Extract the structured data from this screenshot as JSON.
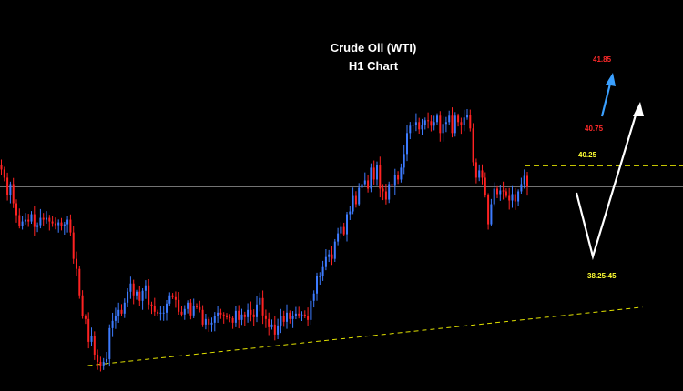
{
  "chart_data": {
    "type": "candlestick",
    "title_line1": "Crude Oil (WTI)",
    "title_line2": "H1 Chart",
    "colors": {
      "background": "#000000",
      "bull": "#3d7bff",
      "bear": "#ff2222",
      "trendline": "#e0e000",
      "resistance": "#e0e000",
      "current_price_line": "#9a9a9a",
      "forecast_path": "#ffffff",
      "forecast_arrow": "#3aa0ff",
      "target_label": "#ff2a2a",
      "level_label": "#ffff33"
    },
    "price_range": [
      37.9,
      41.95
    ],
    "candles_close": [
      40.21,
      40.12,
      39.93,
      40.05,
      39.84,
      39.71,
      39.59,
      39.64,
      39.66,
      39.64,
      39.72,
      39.58,
      39.6,
      39.68,
      39.66,
      39.68,
      39.64,
      39.62,
      39.6,
      39.63,
      39.59,
      39.61,
      39.66,
      39.52,
      39.23,
      39.12,
      38.83,
      38.6,
      38.57,
      38.32,
      38.38,
      38.18,
      38.1,
      38.05,
      38.1,
      38.13,
      38.47,
      38.55,
      38.6,
      38.67,
      38.63,
      38.75,
      38.87,
      38.96,
      38.83,
      38.87,
      38.77,
      38.88,
      38.94,
      38.73,
      38.71,
      38.65,
      38.63,
      38.64,
      38.64,
      38.74,
      38.83,
      38.81,
      38.78,
      38.65,
      38.62,
      38.68,
      38.75,
      38.61,
      38.71,
      38.7,
      38.67,
      38.51,
      38.57,
      38.51,
      38.53,
      38.6,
      38.64,
      38.62,
      38.61,
      38.59,
      38.58,
      38.53,
      38.66,
      38.56,
      38.62,
      38.59,
      38.67,
      38.62,
      38.59,
      38.73,
      38.8,
      38.61,
      38.57,
      38.48,
      38.51,
      38.4,
      38.5,
      38.6,
      38.54,
      38.64,
      38.57,
      38.6,
      38.63,
      38.61,
      38.62,
      38.6,
      38.56,
      38.77,
      38.85,
      39.04,
      39.04,
      39.14,
      39.25,
      39.28,
      39.23,
      39.42,
      39.51,
      39.58,
      39.5,
      39.72,
      39.75,
      39.92,
      39.83,
      40.01,
      40.05,
      40.09,
      40.0,
      40.23,
      40.1,
      40.26,
      40.0,
      39.97,
      39.88,
      40.05,
      40.03,
      40.15,
      40.1,
      40.23,
      40.38,
      40.61,
      40.69,
      40.7,
      40.73,
      40.65,
      40.7,
      40.75,
      40.74,
      40.69,
      40.73,
      40.8,
      40.61,
      40.71,
      40.73,
      40.8,
      40.61,
      40.8,
      40.73,
      40.7,
      40.78,
      40.81,
      40.66,
      40.29,
      40.12,
      40.2,
      40.12,
      39.93,
      39.61,
      39.83,
      40.0,
      39.94,
      39.98,
      39.97,
      39.92,
      39.87,
      39.94,
      39.86,
      39.97,
      40.05,
      40.14,
      40.02
    ],
    "current_price": 40.02,
    "levels": [
      {
        "label": "40.25",
        "price": 40.25,
        "style": "dashed"
      },
      {
        "label": "38.25-45",
        "price": 38.35,
        "style": "trendline-target"
      }
    ],
    "trendline": {
      "from": {
        "bar": 0,
        "price": 38.06
      },
      "to": {
        "bar": 233,
        "price": 38.7
      }
    },
    "forecast_path": [
      {
        "bar": 181,
        "price": 39.92
      },
      {
        "bar": 188,
        "price": 38.45
      },
      {
        "bar": 202,
        "price": 40.88
      }
    ],
    "target_arrow": {
      "from": {
        "bar": 186,
        "price": 40.82
      },
      "to": {
        "bar": 190,
        "price": 41.45
      }
    },
    "targets": [
      {
        "label": "41.85",
        "price": 41.85
      },
      {
        "label": "40.75",
        "price": 40.75
      }
    ]
  }
}
